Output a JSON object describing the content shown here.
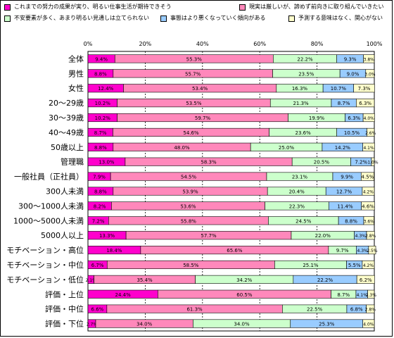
{
  "legend": [
    {
      "label": "これまでの努力の成果が実り、明るい仕事生活が期待できそう",
      "color": "#ff00cc"
    },
    {
      "label": "現実は厳しいが、諦めず前向きに取り組んでいきたい",
      "color": "#ff88bb"
    },
    {
      "label": "不安要素が多く、あまり明るい見通しは立てられない",
      "color": "#ccffcc"
    },
    {
      "label": "事態はより悪くなっていく傾向がある",
      "color": "#99ccff"
    },
    {
      "label": "予測する意味はなく、関心がない",
      "color": "#ffffcc"
    }
  ],
  "chart_data": {
    "type": "bar",
    "orientation": "horizontal",
    "stacked": true,
    "xlim": [
      0,
      100
    ],
    "x_ticks": [
      "0%",
      "20%",
      "40%",
      "60%",
      "80%",
      "100%"
    ],
    "categories": [
      "全体",
      "男性",
      "女性",
      "20～29歳",
      "30～39歳",
      "40～49歳",
      "50歳以上",
      "管理職",
      "一般社員（正社員）",
      "300人未満",
      "300～1000人未満",
      "1000～5000人未満",
      "5000人以上",
      "モチベーション・高位",
      "モチベーション・中位",
      "モチベーション・低位",
      "評価・上位",
      "評価・中位",
      "評価・下位"
    ],
    "series": [
      {
        "name": "これまでの努力の成果が実り、明るい仕事生活が期待できそう",
        "color": "#ff00cc",
        "values": [
          9.4,
          8.8,
          12.4,
          10.2,
          10.2,
          8.7,
          8.8,
          13.0,
          7.9,
          8.8,
          8.2,
          7.2,
          13.3,
          18.4,
          6.7,
          2.1,
          24.4,
          6.6,
          2.7
        ],
        "labels": [
          "9.4%",
          "8.8%",
          "12.4%",
          "10.2%",
          "10.2%",
          "8.7%",
          "8.8%",
          "13.0%",
          "7.9%",
          "8.8%",
          "8.2%",
          "7.2%",
          "13.3%",
          "18.4%",
          "6.7%",
          "2.1%",
          "24.4%",
          "6.6%",
          "2.7%"
        ]
      },
      {
        "name": "現実は厳しいが、諦めず前向きに取り組んでいきたい",
        "color": "#ff88bb",
        "values": [
          55.3,
          55.7,
          53.4,
          53.5,
          59.7,
          54.6,
          48.0,
          58.3,
          54.5,
          53.9,
          53.6,
          55.8,
          57.7,
          65.6,
          58.5,
          35.4,
          60.5,
          61.3,
          34.0
        ],
        "labels": [
          "55.3%",
          "55.7%",
          "53.4%",
          "53.5%",
          "59.7%",
          "54.6%",
          "48.0%",
          "58.3%",
          "54.5%",
          "53.9%",
          "53.6%",
          "55.8%",
          "57.7%",
          "65.6%",
          "58.5%",
          "35.4%",
          "60.5%",
          "61.3%",
          "34.0%"
        ]
      },
      {
        "name": "不安要素が多く、あまり明るい見通しは立てられない",
        "color": "#ccffcc",
        "values": [
          22.2,
          23.5,
          16.3,
          21.3,
          19.9,
          23.6,
          25.0,
          20.5,
          23.1,
          20.4,
          22.3,
          24.5,
          22.0,
          9.7,
          25.1,
          34.2,
          8.7,
          22.5,
          34.0
        ],
        "labels": [
          "22.2%",
          "23.5%",
          "16.3%",
          "21.3%",
          "19.9%",
          "23.6%",
          "25.0%",
          "20.5%",
          "23.1%",
          "20.4%",
          "22.3%",
          "24.5%",
          "22.0%",
          "9.7%",
          "25.1%",
          "34.2%",
          "8.7%",
          "22.5%",
          "34.0%"
        ]
      },
      {
        "name": "事態はより悪くなっていく傾向がある",
        "color": "#99ccff",
        "values": [
          9.3,
          9.0,
          10.7,
          8.7,
          6.3,
          10.5,
          14.2,
          7.2,
          9.9,
          12.7,
          11.4,
          8.8,
          4.3,
          4.3,
          5.5,
          22.2,
          4.1,
          6.8,
          25.3
        ],
        "labels": [
          "9.3%",
          "9.0%",
          "10.7%",
          "8.7%",
          "6.3%",
          "10.5%",
          "14.2%",
          "7.2%",
          "9.9%",
          "12.7%",
          "11.4%",
          "8.8%",
          "4.3%",
          "4.3%",
          "5.5%",
          "22.2%",
          "4.1%",
          "6.8%",
          "25.3%"
        ]
      },
      {
        "name": "予測する意味はなく、関心がない",
        "color": "#ffffcc",
        "values": [
          3.8,
          3.0,
          7.3,
          6.3,
          4.0,
          2.6,
          4.1,
          1.0,
          4.5,
          4.2,
          4.6,
          3.6,
          2.8,
          2.5,
          4.2,
          6.2,
          2.3,
          2.8,
          4.0
        ],
        "labels": [
          "3.8%",
          "3.0%",
          "7.3%",
          "6.3%",
          "4.0%",
          "2.6%",
          "4.1%",
          "1.0%",
          "4.5%",
          "4.2%",
          "4.6%",
          "3.6%",
          "2.8%",
          "2.5%",
          "4.2%",
          "6.2%",
          "2.3%",
          "2.8%",
          "4.0%"
        ]
      }
    ]
  }
}
